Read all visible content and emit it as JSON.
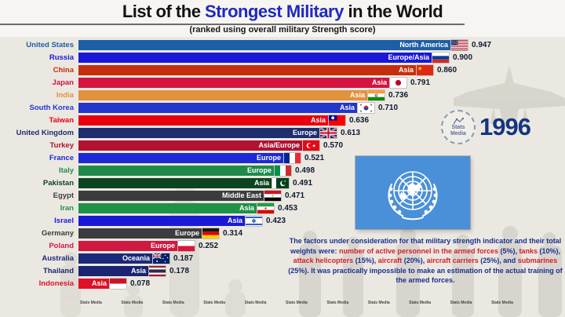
{
  "header": {
    "title_prefix": "List of the ",
    "title_highlight": "Strongest Military",
    "title_suffix": " in the World",
    "subtitle": "(ranked using overall military Strength score)"
  },
  "year": "1996",
  "logo": {
    "line1": "Stats",
    "line2": "Media"
  },
  "watermark": {
    "text": "Stats Media",
    "count": 11
  },
  "colors": {
    "title_highlight": "#2028c0",
    "year_text": "#16357e",
    "footnote_blue": "#1c2f8f",
    "footnote_red": "#d3202e",
    "un_flag_blue": "#4a90d9",
    "value_text": "#0e1a30"
  },
  "chart_data": {
    "type": "bar",
    "orientation": "horizontal",
    "title": "List of the Strongest Military in the World",
    "subtitle": "(ranked using overall military Strength score)",
    "xlabel": "overall military Strength score",
    "xlim": [
      0,
      1.0
    ],
    "grid": false,
    "max_value": 0.947,
    "rows": [
      {
        "country": "United States",
        "region": "North America",
        "value": 0.947,
        "value_text": "0.947",
        "color": "#1d5fa5",
        "flag": "us"
      },
      {
        "country": "Russia",
        "region": "Europe/Asia",
        "value": 0.9,
        "value_text": "0.900",
        "color": "#1a17d8",
        "flag": "ru"
      },
      {
        "country": "China",
        "region": "Asia",
        "value": 0.86,
        "value_text": "0.860",
        "color": "#c52e0c",
        "flag": "cn"
      },
      {
        "country": "Japan",
        "region": "Asia",
        "value": 0.791,
        "value_text": "0.791",
        "color": "#d41341",
        "flag": "jp"
      },
      {
        "country": "India",
        "region": "Asia",
        "value": 0.736,
        "value_text": "0.736",
        "color": "#e2913d",
        "flag": "in"
      },
      {
        "country": "South Korea",
        "region": "Asia",
        "value": 0.71,
        "value_text": "0.710",
        "color": "#2336cc",
        "flag": "kr"
      },
      {
        "country": "Taiwan",
        "region": "Asia",
        "value": 0.636,
        "value_text": "0.636",
        "color": "#e8000f",
        "flag": "tw"
      },
      {
        "country": "United Kingdom",
        "region": "Europe",
        "value": 0.613,
        "value_text": "0.613",
        "color": "#1d2d6e",
        "flag": "gb"
      },
      {
        "country": "Turkey",
        "region": "Asia/Europe",
        "value": 0.57,
        "value_text": "0.570",
        "color": "#b01230",
        "flag": "tr"
      },
      {
        "country": "France",
        "region": "Europe",
        "value": 0.521,
        "value_text": "0.521",
        "color": "#1b2ad6",
        "flag": "fr"
      },
      {
        "country": "Italy",
        "region": "Europe",
        "value": 0.498,
        "value_text": "0.498",
        "color": "#1f8a4c",
        "flag": "it"
      },
      {
        "country": "Pakistan",
        "region": "Asia",
        "value": 0.491,
        "value_text": "0.491",
        "color": "#0d4420",
        "flag": "pk"
      },
      {
        "country": "Egypt",
        "region": "Middle East",
        "value": 0.471,
        "value_text": "0.471",
        "color": "#3c3c3e",
        "flag": "eg"
      },
      {
        "country": "Iran",
        "region": "Asia",
        "value": 0.453,
        "value_text": "0.453",
        "color": "#209148",
        "flag": "ir"
      },
      {
        "country": "Israel",
        "region": "Asia",
        "value": 0.423,
        "value_text": "0.423",
        "color": "#1a1ad6",
        "flag": "il"
      },
      {
        "country": "Germany",
        "region": "Europe",
        "value": 0.314,
        "value_text": "0.314",
        "color": "#3c3c3e",
        "flag": "de"
      },
      {
        "country": "Poland",
        "region": "Europe",
        "value": 0.252,
        "value_text": "0.252",
        "color": "#d01940",
        "flag": "pl"
      },
      {
        "country": "Australia",
        "region": "Oceania",
        "value": 0.187,
        "value_text": "0.187",
        "color": "#1b2a78",
        "flag": "au"
      },
      {
        "country": "Thailand",
        "region": "Asia",
        "value": 0.178,
        "value_text": "0.178",
        "color": "#1a2470",
        "flag": "th"
      },
      {
        "country": "Indonesia",
        "region": "Asia",
        "value": 0.078,
        "value_text": "0.078",
        "color": "#de1126",
        "flag": "id"
      }
    ]
  },
  "footnote_segments": [
    {
      "text": "The factors under consideration for that military strength indicator and their total weights were: ",
      "color": "blue"
    },
    {
      "text": "number of active personnel in the armed forces",
      "color": "red"
    },
    {
      "text": " (5%), ",
      "color": "blue"
    },
    {
      "text": "tanks",
      "color": "red"
    },
    {
      "text": " (10%), ",
      "color": "blue"
    },
    {
      "text": "attack helicopters",
      "color": "red"
    },
    {
      "text": " (15%), ",
      "color": "blue"
    },
    {
      "text": "aircraft",
      "color": "red"
    },
    {
      "text": " (20%), ",
      "color": "blue"
    },
    {
      "text": "aircraft carriers",
      "color": "red"
    },
    {
      "text": " (25%), and ",
      "color": "blue"
    },
    {
      "text": "submarines",
      "color": "red"
    },
    {
      "text": " (25%). It was practically impossible to make an estimation of the actual training of the armed forces.",
      "color": "blue"
    }
  ]
}
